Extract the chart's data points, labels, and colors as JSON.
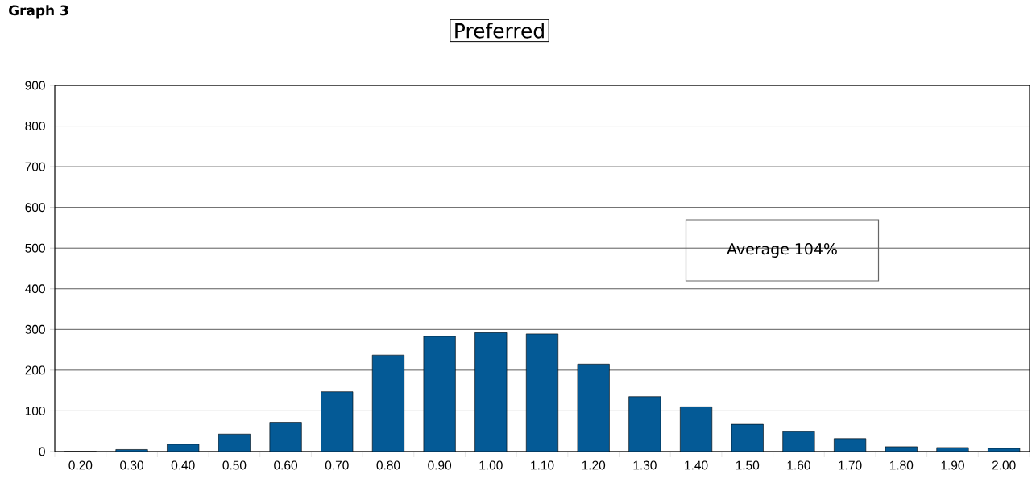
{
  "chart_data": {
    "type": "bar",
    "title": "Graph 3",
    "subtitle": "Preferred",
    "categories": [
      "0.20",
      "0.30",
      "0.40",
      "0.50",
      "0.60",
      "0.70",
      "0.80",
      "0.90",
      "1.00",
      "1.10",
      "1.20",
      "1.30",
      "1.40",
      "1.50",
      "1.60",
      "1.70",
      "1.80",
      "1.90",
      "2.00"
    ],
    "values": [
      0,
      5,
      18,
      43,
      72,
      147,
      237,
      283,
      292,
      289,
      215,
      135,
      110,
      67,
      49,
      32,
      12,
      10,
      8
    ],
    "color": "#045a96",
    "ylim": [
      0,
      900
    ],
    "yticks": [
      0,
      100,
      200,
      300,
      400,
      500,
      600,
      700,
      800,
      900
    ],
    "grid": "y",
    "annotations": [
      "Average 104%"
    ]
  }
}
